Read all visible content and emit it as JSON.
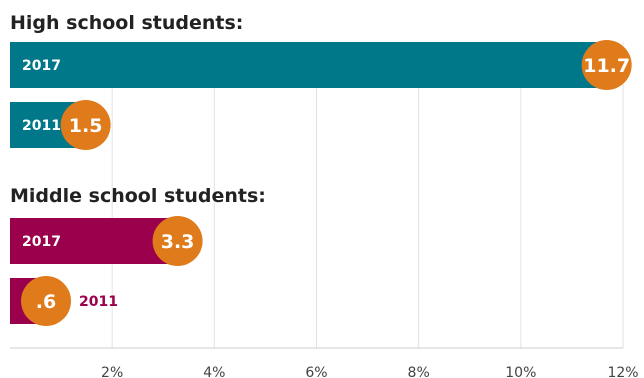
{
  "chart_data": {
    "type": "bar",
    "orientation": "horizontal",
    "value_format": "percent",
    "xlim": [
      0,
      12
    ],
    "x_ticks": [
      2,
      4,
      6,
      8,
      10,
      12
    ],
    "x_tick_labels": [
      "2%",
      "4%",
      "6%",
      "8%",
      "10%",
      "12%"
    ],
    "grid": true,
    "groups": [
      {
        "title": "High school students:",
        "color": "#00788a",
        "bars": [
          {
            "category": "2017",
            "value": 11.7,
            "value_label": "11.7"
          },
          {
            "category": "2011",
            "value": 1.5,
            "value_label": "1.5"
          }
        ]
      },
      {
        "title": "Middle school students:",
        "color": "#9a004b",
        "bars": [
          {
            "category": "2017",
            "value": 3.3,
            "value_label": "3.3"
          },
          {
            "category": "2011",
            "value": 0.6,
            "value_label": ".6"
          }
        ]
      }
    ],
    "badge_color": "#e07b1c"
  }
}
